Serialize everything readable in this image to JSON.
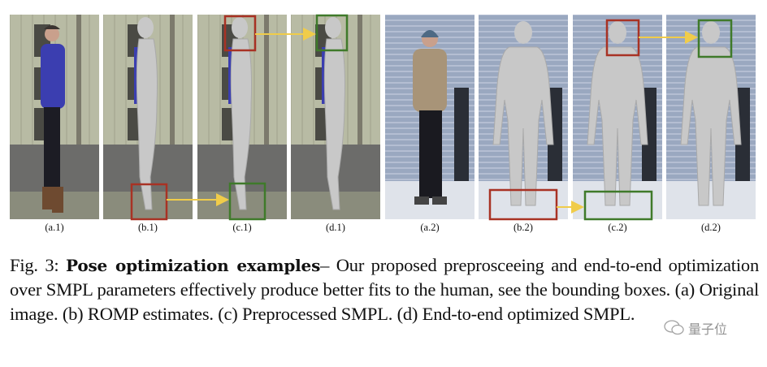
{
  "panels": [
    {
      "label": "(a.1)",
      "scene": "outdoor-door",
      "content": "photo"
    },
    {
      "label": "(b.1)",
      "scene": "outdoor-door",
      "content": "smpl"
    },
    {
      "label": "(c.1)",
      "scene": "outdoor-door",
      "content": "smpl"
    },
    {
      "label": "(d.1)",
      "scene": "outdoor-door",
      "content": "smpl"
    },
    {
      "label": "(a.2)",
      "scene": "brick-wall-snow",
      "content": "photo"
    },
    {
      "label": "(b.2)",
      "scene": "brick-wall-snow",
      "content": "smpl"
    },
    {
      "label": "(c.2)",
      "scene": "brick-wall-snow",
      "content": "smpl"
    },
    {
      "label": "(d.2)",
      "scene": "brick-wall-snow",
      "content": "smpl"
    }
  ],
  "colors": {
    "bad_box": "#a83224",
    "good_box": "#3f7a2a",
    "arrow": "#f0cc4a",
    "mesh": "#c8c8c8"
  },
  "caption": {
    "prefix": "Fig. 3: ",
    "title": "Pose optimization examples",
    "body": "– Our proposed preprosceeing and end-to-end optimization over SMPL parameters effectively produce better fits to the human, see the bounding boxes. (a) Original image. (b) ROMP estimates. (c) Preprocessed SMPL. (d) End-to-end optimized SMPL."
  },
  "watermark": {
    "text": "量子位",
    "icon": "wechat-icon"
  }
}
